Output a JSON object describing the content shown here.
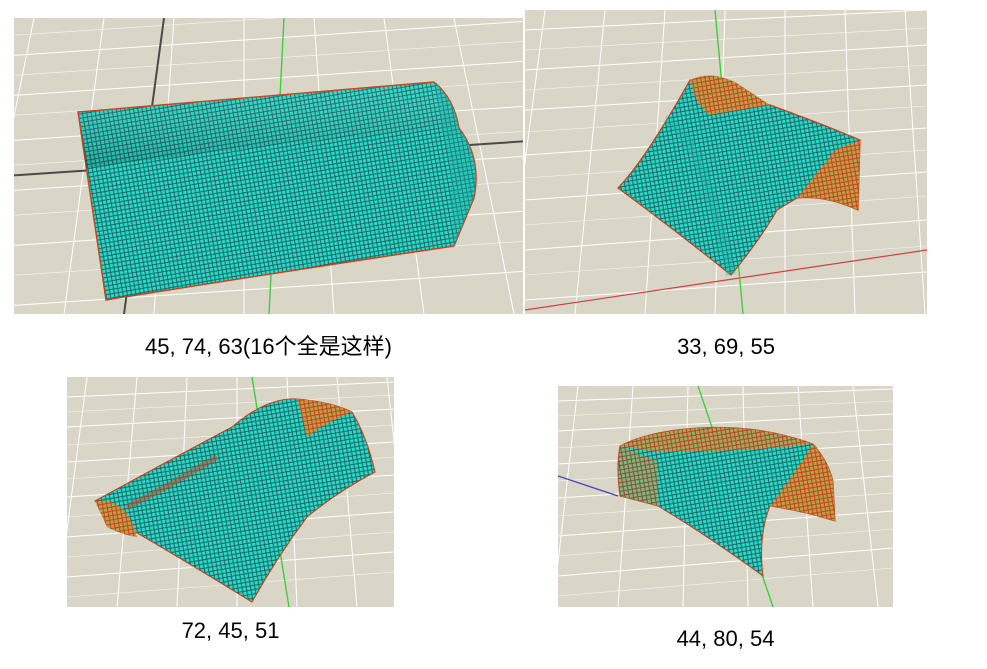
{
  "panels": [
    {
      "caption": "45, 74, 63(16个全是这样)"
    },
    {
      "caption": "33, 69, 55"
    },
    {
      "caption": "72, 45, 51"
    },
    {
      "caption": "44, 80, 54"
    }
  ],
  "colors": {
    "floor": "#d9d6c8",
    "grid": "#ffffff",
    "grid_bold": "#4a4a4a",
    "surface_cyan": "#2fd6c8",
    "surface_mesh": "#0f5f5a",
    "surface_red": "#c8401a",
    "surface_olive": "#b7a24a",
    "axis_green": "#3ecf3e",
    "axis_red": "#d04040",
    "axis_blue": "#4040c0"
  }
}
